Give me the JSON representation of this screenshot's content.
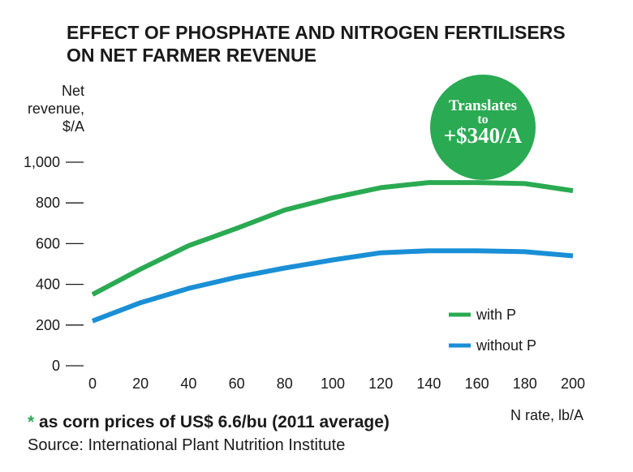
{
  "chart_data": {
    "type": "line",
    "title_lines": [
      "EFFECT OF PHOSPHATE AND NITROGEN FERTILISERS",
      "ON NET FARMER REVENUE"
    ],
    "ylabel_lines": [
      "Net",
      "revenue,",
      "$/A"
    ],
    "xlabel": "N rate, lb/A",
    "x": [
      0,
      20,
      40,
      60,
      80,
      100,
      120,
      140,
      160,
      180,
      200
    ],
    "x_tick_labels": [
      "0",
      "20",
      "40",
      "60",
      "80",
      "100",
      "120",
      "140",
      "160",
      "180",
      "200"
    ],
    "y_ticks": [
      0,
      200,
      400,
      600,
      800,
      1000
    ],
    "y_tick_labels": [
      "0",
      "200",
      "400",
      "600",
      "800",
      "1,000"
    ],
    "ylim": [
      0,
      1000
    ],
    "xlim": [
      0,
      200
    ],
    "grid": false,
    "legend_position": "bottom-right",
    "series": [
      {
        "name": "with P",
        "color": "#2aaa52",
        "values": [
          350,
          475,
          590,
          675,
          765,
          825,
          875,
          900,
          900,
          895,
          860
        ]
      },
      {
        "name": "without P",
        "color": "#1a8fd6",
        "values": [
          220,
          310,
          380,
          435,
          480,
          520,
          555,
          565,
          565,
          560,
          540
        ]
      }
    ],
    "annotation": {
      "line1": "Translates",
      "line2": "to",
      "line3": "+$340/A",
      "color": "#2aaa52"
    },
    "footnote": {
      "asterisk": "*",
      "asterisk_color": "#2aaa52",
      "text": " as corn prices of US$ 6.6/bu (2011 average)",
      "source": "Source: International Plant Nutrition Institute"
    }
  }
}
